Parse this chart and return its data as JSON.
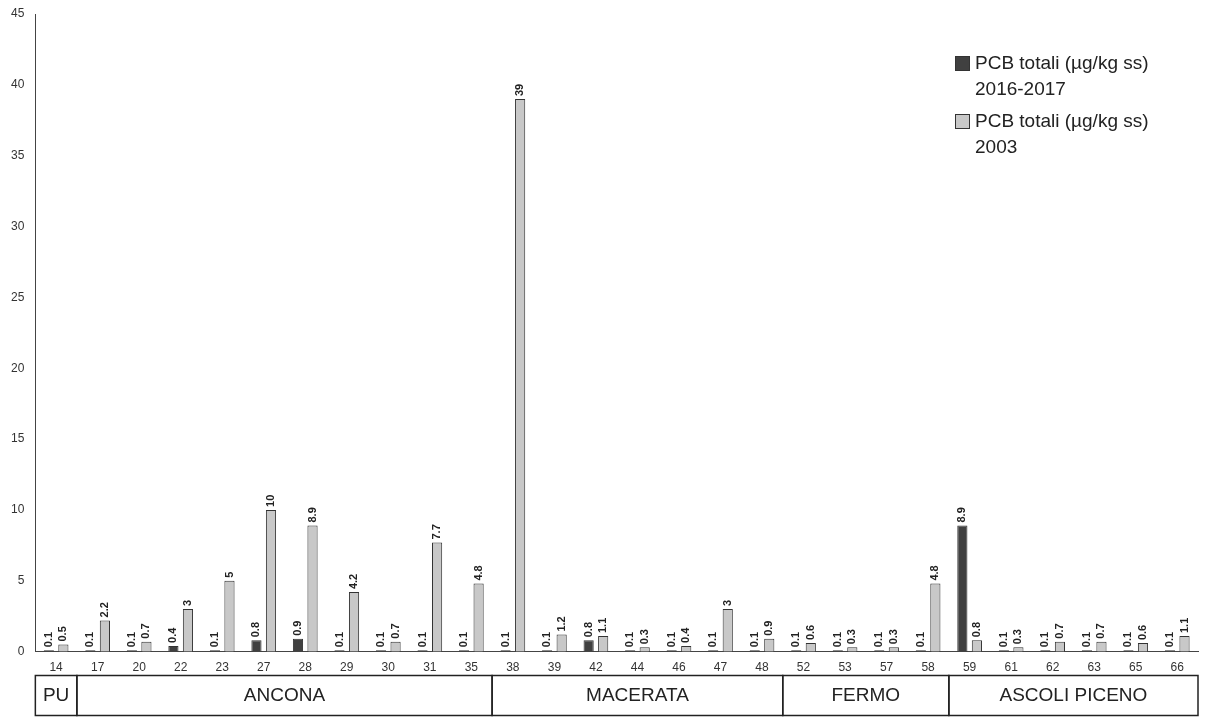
{
  "chart_data": {
    "type": "bar",
    "categories": [
      "14",
      "17",
      "20",
      "22",
      "23",
      "27",
      "28",
      "29",
      "30",
      "31",
      "35",
      "38",
      "39",
      "42",
      "44",
      "46",
      "47",
      "48",
      "52",
      "53",
      "57",
      "58",
      "59",
      "61",
      "62",
      "63",
      "65",
      "66"
    ],
    "series": [
      {
        "name": "PCB totali (µg/kg ss) 2016-2017",
        "color": "#404040",
        "values": [
          0.1,
          0.1,
          0.1,
          0.4,
          0.1,
          0.8,
          0.9,
          0.1,
          0.1,
          0.1,
          0.1,
          0.1,
          0.1,
          0.8,
          0.1,
          0.1,
          0.1,
          0.1,
          0.1,
          0.1,
          0.1,
          0.1,
          8.9,
          0.1,
          0.1,
          0.1,
          0.1,
          0.1
        ]
      },
      {
        "name": "PCB totali (µg/kg ss) 2003",
        "color": "#c8c8c8",
        "values": [
          0.5,
          2.2,
          0.7,
          3,
          5,
          10,
          8.9,
          4.2,
          0.7,
          7.7,
          4.8,
          39,
          1.2,
          1.1,
          0.3,
          0.4,
          3,
          0.9,
          0.6,
          0.3,
          0.3,
          4.8,
          0.8,
          0.3,
          0.7,
          0.7,
          0.6,
          1.1
        ]
      }
    ],
    "ylim": [
      0,
      45
    ],
    "yticks": [
      0,
      5,
      10,
      15,
      20,
      25,
      30,
      35,
      40,
      45
    ],
    "grid": false,
    "legend": "top right",
    "data_labels": true,
    "annotations": [
      "PU",
      "ANCONA",
      "MACERATA",
      "FERMO",
      "ASCOLI PICENO"
    ]
  }
}
